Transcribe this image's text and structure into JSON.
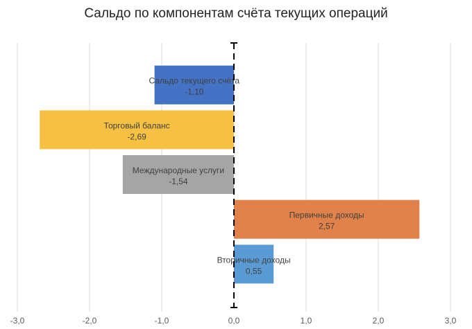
{
  "chart_data": {
    "type": "bar",
    "orientation": "horizontal",
    "title": "Сальдо по компонентам счёта текущих операций",
    "xlabel": "",
    "ylabel": "",
    "xlim": [
      -3.0,
      3.0
    ],
    "x_ticks": [
      -3.0,
      -2.0,
      -1.0,
      0.0,
      1.0,
      2.0,
      3.0
    ],
    "x_tick_labels": [
      "-3,0",
      "-2,0",
      "-1,0",
      "0,0",
      "1,0",
      "2,0",
      "3,0"
    ],
    "grid": true,
    "legend": "none",
    "zero_line": "dashed",
    "categories": [
      "Сальдо текущего счёта",
      "Торговый баланс",
      "Международные услуги",
      "Первичные доходы",
      "Вторичные доходы"
    ],
    "values": [
      -1.1,
      -2.69,
      -1.54,
      2.57,
      0.55
    ],
    "value_labels": [
      "-1,10",
      "-2,69",
      "-1,54",
      "2,57",
      "0,55"
    ],
    "colors": [
      "#4472C4",
      "#F6C142",
      "#A5A5A5",
      "#E0824A",
      "#5B9BD5"
    ]
  }
}
